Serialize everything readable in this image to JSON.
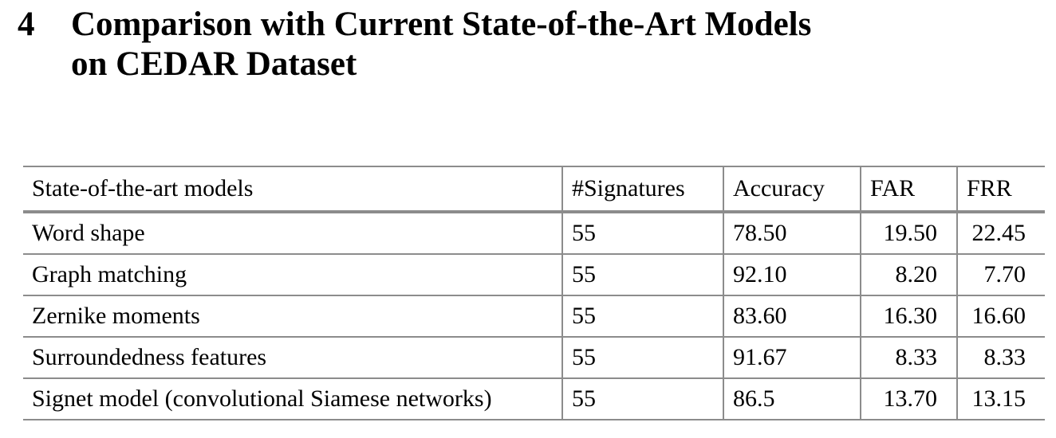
{
  "section": {
    "number": "4",
    "title_line1": "Comparison with Current State-of-the-Art Models",
    "title_line2": "on CEDAR Dataset"
  },
  "table": {
    "columns": [
      "State-of-the-art models",
      "#Signatures",
      "Accuracy",
      "FAR",
      "FRR"
    ],
    "rows": [
      {
        "model": "Word shape",
        "signatures": "55",
        "accuracy": "78.50",
        "far": "19.50",
        "frr": "22.45"
      },
      {
        "model": "Graph matching",
        "signatures": "55",
        "accuracy": "92.10",
        "far": "8.20",
        "frr": "7.70"
      },
      {
        "model": "Zernike moments",
        "signatures": "55",
        "accuracy": "83.60",
        "far": "16.30",
        "frr": "16.60"
      },
      {
        "model": "Surroundedness features",
        "signatures": "55",
        "accuracy": "91.67",
        "far": "8.33",
        "frr": "8.33"
      },
      {
        "model": "Signet model (convolutional Siamese networks)",
        "signatures": "55",
        "accuracy": "86.5",
        "far": "13.70",
        "frr": "13.15"
      }
    ]
  }
}
